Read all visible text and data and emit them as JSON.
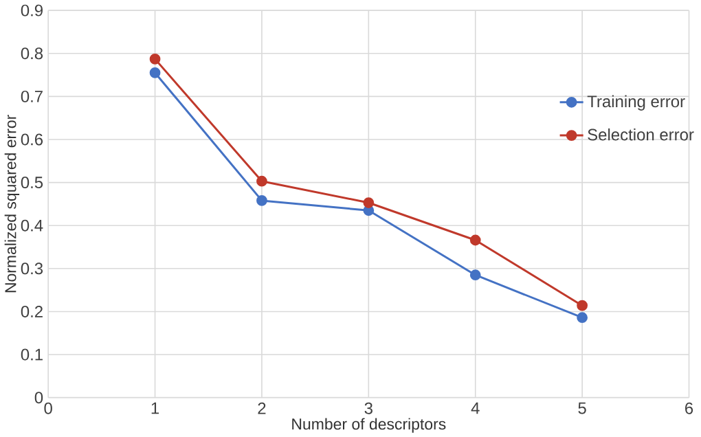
{
  "chart_data": {
    "type": "line",
    "xlabel": "Number of descriptors",
    "ylabel": "Normalized squared error",
    "x": [
      1,
      2,
      3,
      4,
      5
    ],
    "series": [
      {
        "name": "Training error",
        "color": "#4472c4",
        "values": [
          0.755,
          0.458,
          0.435,
          0.285,
          0.186
        ]
      },
      {
        "name": "Selection error",
        "color": "#c0392b",
        "values": [
          0.787,
          0.503,
          0.453,
          0.366,
          0.214
        ]
      }
    ],
    "xlim": [
      0,
      6
    ],
    "xticks": [
      0,
      1,
      2,
      3,
      4,
      5,
      6
    ],
    "ylim": [
      0,
      0.9
    ],
    "yticks": [
      0,
      0.1,
      0.2,
      0.3,
      0.4,
      0.5,
      0.6,
      0.7,
      0.8,
      0.9
    ],
    "grid": true,
    "legend": "right",
    "marker": "circle",
    "line_style": "solid"
  }
}
